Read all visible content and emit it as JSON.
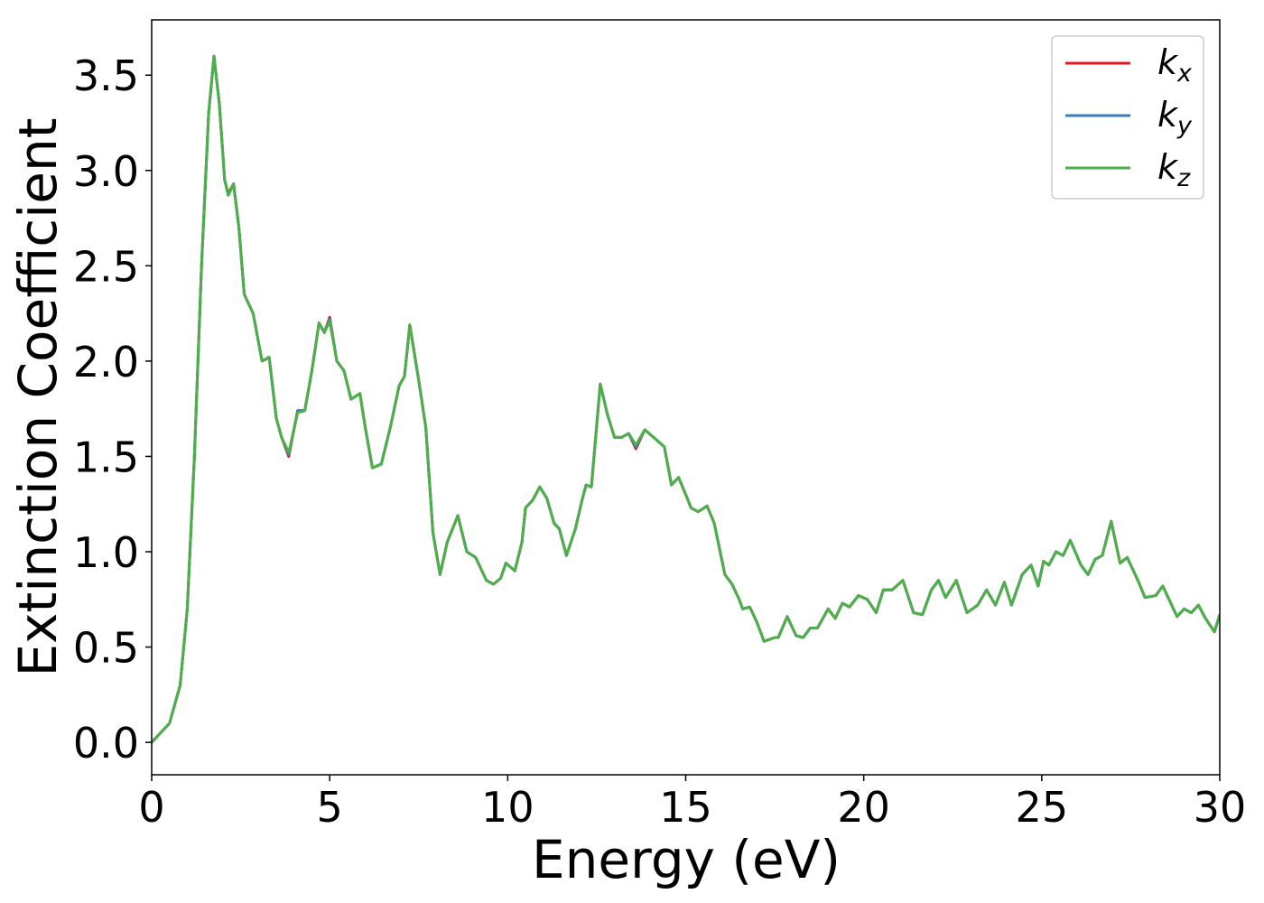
{
  "chart_data": {
    "type": "line",
    "xlabel": "Energy (eV)",
    "ylabel": "Extinction Coefficient",
    "xlim": [
      0,
      30
    ],
    "xticks": [
      0,
      5,
      10,
      15,
      20,
      25,
      30
    ],
    "ylim": [
      -0.17,
      3.79
    ],
    "yticks": [
      {
        "value": 0,
        "label": "0.0"
      },
      0.5,
      {
        "value": 1,
        "label": "1.0"
      },
      1.5,
      {
        "value": 2,
        "label": "2.0"
      },
      2.5,
      {
        "value": 3,
        "label": "3.0"
      },
      3.5
    ],
    "legend": "upper right",
    "x": [
      0,
      0.5,
      0.8,
      1.0,
      1.2,
      1.4,
      1.6,
      1.75,
      1.9,
      2.05,
      2.15,
      2.3,
      2.45,
      2.6,
      2.85,
      3.1,
      3.3,
      3.5,
      3.65,
      3.85,
      4.1,
      4.3,
      4.5,
      4.7,
      4.85,
      5.0,
      5.2,
      5.4,
      5.6,
      5.85,
      6.0,
      6.2,
      6.45,
      6.7,
      6.95,
      7.1,
      7.25,
      7.5,
      7.7,
      7.9,
      8.1,
      8.3,
      8.6,
      8.85,
      9.1,
      9.4,
      9.6,
      9.8,
      9.95,
      10.2,
      10.4,
      10.5,
      10.7,
      10.9,
      11.1,
      11.3,
      11.45,
      11.65,
      11.9,
      12.1,
      12.2,
      12.35,
      12.6,
      12.8,
      13.0,
      13.2,
      13.4,
      13.6,
      13.85,
      14.1,
      14.4,
      14.6,
      14.8,
      15.0,
      15.15,
      15.35,
      15.6,
      15.8,
      16.1,
      16.3,
      16.5,
      16.6,
      16.8,
      17.0,
      17.2,
      17.5,
      17.6,
      17.85,
      18.1,
      18.3,
      18.5,
      18.7,
      19.0,
      19.2,
      19.4,
      19.6,
      19.85,
      20.1,
      20.35,
      20.55,
      20.8,
      21.1,
      21.4,
      21.65,
      21.9,
      22.1,
      22.3,
      22.6,
      22.9,
      23.2,
      23.45,
      23.7,
      23.95,
      24.15,
      24.45,
      24.7,
      24.9,
      25.05,
      25.2,
      25.4,
      25.6,
      25.8,
      26.1,
      26.3,
      26.5,
      26.7,
      26.95,
      27.2,
      27.4,
      27.7,
      27.9,
      28.2,
      28.4,
      28.6,
      28.8,
      29.0,
      29.2,
      29.4,
      29.6,
      29.85,
      30.0
    ],
    "series": [
      {
        "name": "kx",
        "color": "#e41a1c",
        "values": [
          0,
          0.1,
          0.3,
          0.7,
          1.5,
          2.5,
          3.3,
          3.6,
          3.35,
          2.95,
          2.88,
          2.93,
          2.7,
          2.35,
          2.25,
          2.0,
          2.02,
          1.7,
          1.6,
          1.5,
          1.74,
          1.74,
          1.95,
          2.2,
          2.15,
          2.23,
          2.0,
          1.95,
          1.8,
          1.83,
          1.65,
          1.44,
          1.46,
          1.65,
          1.87,
          1.92,
          2.19,
          1.9,
          1.65,
          1.1,
          0.88,
          1.05,
          1.19,
          1.0,
          0.97,
          0.85,
          0.83,
          0.86,
          0.94,
          0.9,
          1.05,
          1.23,
          1.27,
          1.34,
          1.28,
          1.15,
          1.12,
          0.98,
          1.12,
          1.28,
          1.35,
          1.34,
          1.88,
          1.72,
          1.6,
          1.6,
          1.62,
          1.54,
          1.64,
          1.6,
          1.55,
          1.35,
          1.39,
          1.3,
          1.23,
          1.21,
          1.24,
          1.15,
          0.88,
          0.83,
          0.75,
          0.7,
          0.71,
          0.63,
          0.53,
          0.55,
          0.55,
          0.66,
          0.56,
          0.55,
          0.6,
          0.6,
          0.7,
          0.65,
          0.73,
          0.71,
          0.77,
          0.75,
          0.68,
          0.8,
          0.8,
          0.85,
          0.68,
          0.67,
          0.8,
          0.85,
          0.76,
          0.85,
          0.68,
          0.72,
          0.8,
          0.72,
          0.84,
          0.72,
          0.88,
          0.93,
          0.82,
          0.95,
          0.93,
          1.0,
          0.98,
          1.06,
          0.93,
          0.88,
          0.96,
          0.98,
          1.16,
          0.94,
          0.97,
          0.85,
          0.76,
          0.77,
          0.82,
          0.74,
          0.66,
          0.7,
          0.68,
          0.72,
          0.65,
          0.58,
          0.67
        ]
      },
      {
        "name": "ky",
        "color": "#377eb8",
        "values": [
          0,
          0.1,
          0.3,
          0.7,
          1.5,
          2.5,
          3.3,
          3.6,
          3.35,
          2.95,
          2.87,
          2.93,
          2.7,
          2.35,
          2.25,
          2.0,
          2.02,
          1.7,
          1.6,
          1.51,
          1.74,
          1.74,
          1.95,
          2.2,
          2.15,
          2.22,
          2.0,
          1.95,
          1.8,
          1.83,
          1.65,
          1.44,
          1.46,
          1.65,
          1.87,
          1.92,
          2.19,
          1.9,
          1.65,
          1.1,
          0.88,
          1.05,
          1.19,
          1.0,
          0.97,
          0.85,
          0.83,
          0.86,
          0.94,
          0.9,
          1.05,
          1.23,
          1.27,
          1.34,
          1.28,
          1.15,
          1.12,
          0.98,
          1.12,
          1.28,
          1.35,
          1.34,
          1.88,
          1.72,
          1.6,
          1.6,
          1.62,
          1.55,
          1.64,
          1.6,
          1.55,
          1.35,
          1.39,
          1.3,
          1.23,
          1.21,
          1.24,
          1.15,
          0.88,
          0.83,
          0.75,
          0.7,
          0.71,
          0.63,
          0.53,
          0.55,
          0.55,
          0.66,
          0.56,
          0.55,
          0.6,
          0.6,
          0.7,
          0.65,
          0.73,
          0.71,
          0.77,
          0.75,
          0.68,
          0.8,
          0.8,
          0.85,
          0.68,
          0.67,
          0.8,
          0.85,
          0.76,
          0.85,
          0.68,
          0.72,
          0.8,
          0.72,
          0.84,
          0.72,
          0.88,
          0.93,
          0.82,
          0.95,
          0.93,
          1.0,
          0.98,
          1.06,
          0.93,
          0.88,
          0.96,
          0.98,
          1.16,
          0.94,
          0.97,
          0.85,
          0.76,
          0.77,
          0.82,
          0.74,
          0.66,
          0.7,
          0.68,
          0.72,
          0.65,
          0.58,
          0.67
        ]
      },
      {
        "name": "kz",
        "color": "#4daf4a",
        "values": [
          0,
          0.1,
          0.3,
          0.7,
          1.5,
          2.5,
          3.3,
          3.6,
          3.35,
          2.95,
          2.87,
          2.93,
          2.7,
          2.35,
          2.25,
          2.0,
          2.02,
          1.7,
          1.6,
          1.52,
          1.73,
          1.74,
          1.95,
          2.2,
          2.15,
          2.21,
          2.0,
          1.95,
          1.8,
          1.83,
          1.65,
          1.44,
          1.46,
          1.65,
          1.87,
          1.92,
          2.19,
          1.9,
          1.65,
          1.1,
          0.88,
          1.05,
          1.19,
          1.0,
          0.97,
          0.85,
          0.83,
          0.86,
          0.94,
          0.9,
          1.05,
          1.23,
          1.27,
          1.34,
          1.28,
          1.15,
          1.12,
          0.98,
          1.12,
          1.28,
          1.35,
          1.34,
          1.88,
          1.72,
          1.6,
          1.6,
          1.62,
          1.56,
          1.64,
          1.6,
          1.55,
          1.35,
          1.39,
          1.3,
          1.23,
          1.21,
          1.24,
          1.15,
          0.88,
          0.83,
          0.75,
          0.7,
          0.71,
          0.63,
          0.53,
          0.55,
          0.55,
          0.66,
          0.56,
          0.55,
          0.6,
          0.6,
          0.7,
          0.65,
          0.73,
          0.71,
          0.77,
          0.75,
          0.68,
          0.8,
          0.8,
          0.85,
          0.68,
          0.67,
          0.8,
          0.85,
          0.76,
          0.85,
          0.68,
          0.72,
          0.8,
          0.72,
          0.84,
          0.72,
          0.88,
          0.93,
          0.82,
          0.95,
          0.93,
          1.0,
          0.98,
          1.06,
          0.93,
          0.88,
          0.96,
          0.98,
          1.16,
          0.94,
          0.97,
          0.85,
          0.76,
          0.77,
          0.82,
          0.74,
          0.66,
          0.7,
          0.68,
          0.72,
          0.65,
          0.58,
          0.67
        ]
      }
    ]
  }
}
